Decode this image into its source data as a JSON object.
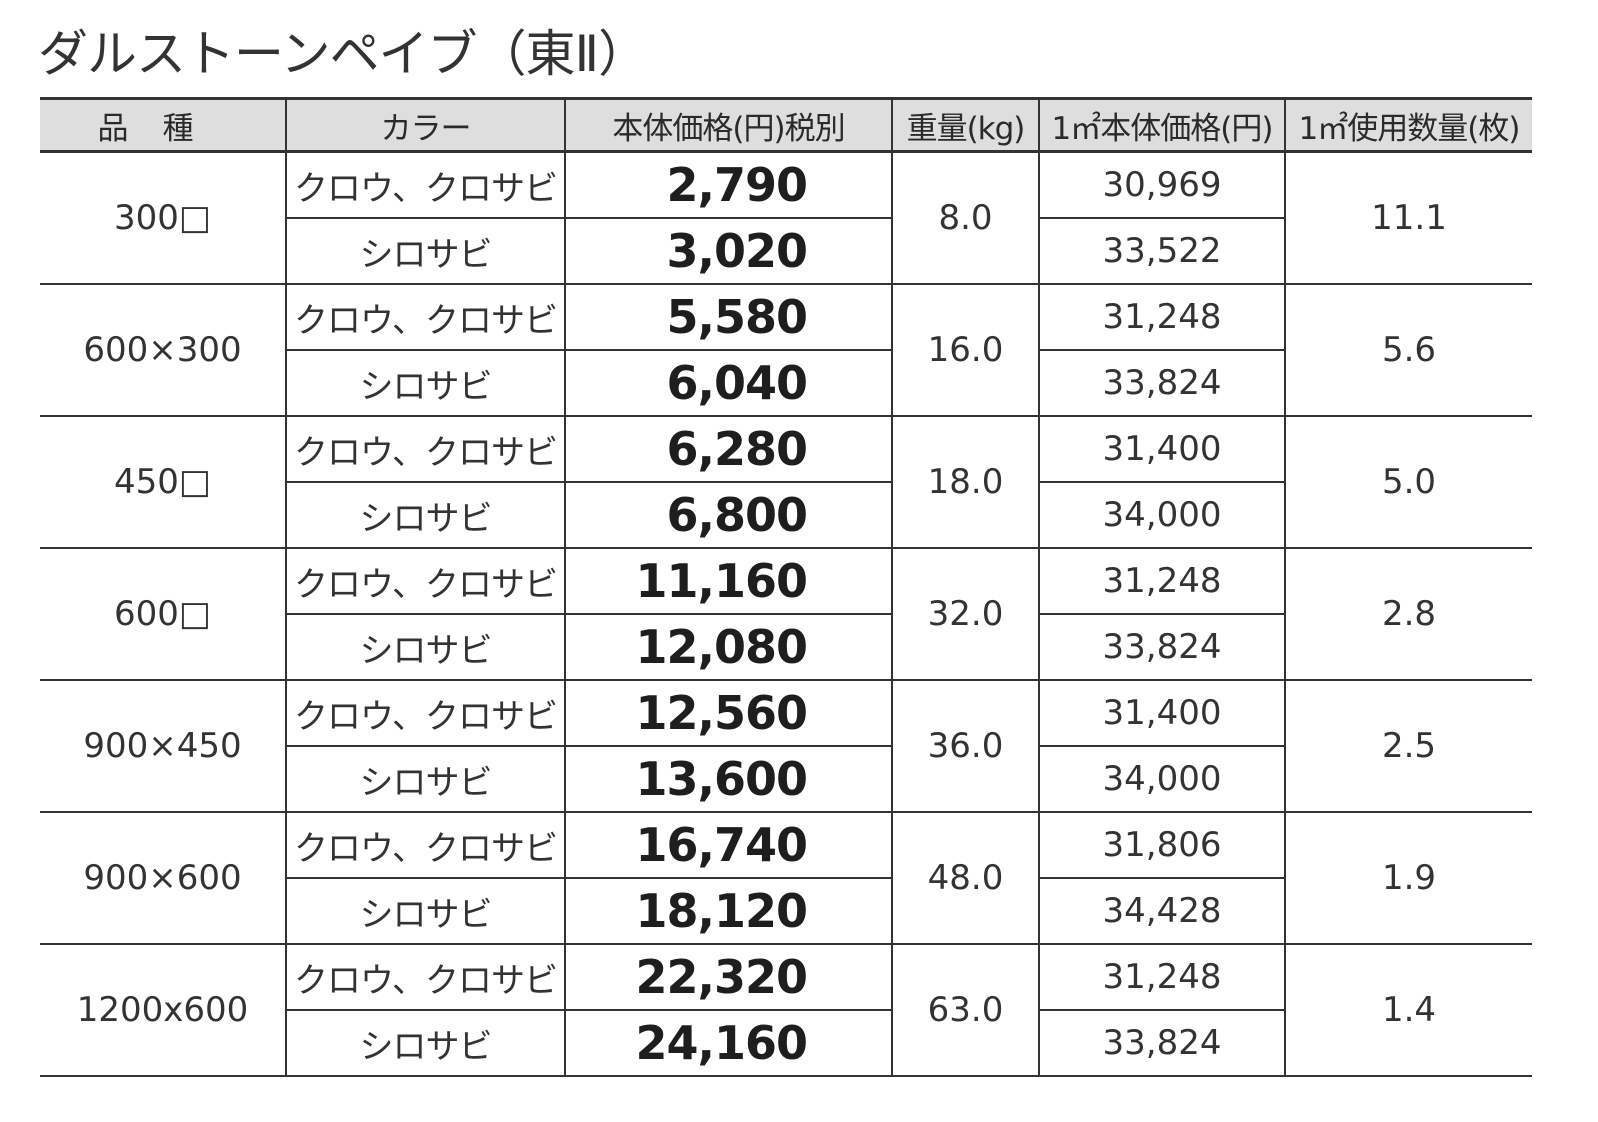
{
  "title": "ダルストーンペイブ（東Ⅱ）",
  "headers": {
    "type": "品種",
    "color": "カラー",
    "price": "本体価格(円)税別",
    "weight": "重量(kg)",
    "price_per_sqm": "1㎡本体価格(円)",
    "qty_per_sqm": "1㎡使用数量(枚)"
  },
  "rows": [
    {
      "type": "300□",
      "weight": "8.0",
      "qty_per_sqm": "11.1",
      "variants": [
        {
          "color": "クロウ、クロサビ",
          "price": "2,790",
          "price_per_sqm": "30,969"
        },
        {
          "color": "シロサビ",
          "price": "3,020",
          "price_per_sqm": "33,522"
        }
      ]
    },
    {
      "type": "600×300",
      "weight": "16.0",
      "qty_per_sqm": "5.6",
      "variants": [
        {
          "color": "クロウ、クロサビ",
          "price": "5,580",
          "price_per_sqm": "31,248"
        },
        {
          "color": "シロサビ",
          "price": "6,040",
          "price_per_sqm": "33,824"
        }
      ]
    },
    {
      "type": "450□",
      "weight": "18.0",
      "qty_per_sqm": "5.0",
      "variants": [
        {
          "color": "クロウ、クロサビ",
          "price": "6,280",
          "price_per_sqm": "31,400"
        },
        {
          "color": "シロサビ",
          "price": "6,800",
          "price_per_sqm": "34,000"
        }
      ]
    },
    {
      "type": "600□",
      "weight": "32.0",
      "qty_per_sqm": "2.8",
      "variants": [
        {
          "color": "クロウ、クロサビ",
          "price": "11,160",
          "price_per_sqm": "31,248"
        },
        {
          "color": "シロサビ",
          "price": "12,080",
          "price_per_sqm": "33,824"
        }
      ]
    },
    {
      "type": "900×450",
      "weight": "36.0",
      "qty_per_sqm": "2.5",
      "variants": [
        {
          "color": "クロウ、クロサビ",
          "price": "12,560",
          "price_per_sqm": "31,400"
        },
        {
          "color": "シロサビ",
          "price": "13,600",
          "price_per_sqm": "34,000"
        }
      ]
    },
    {
      "type": "900×600",
      "weight": "48.0",
      "qty_per_sqm": "1.9",
      "variants": [
        {
          "color": "クロウ、クロサビ",
          "price": "16,740",
          "price_per_sqm": "31,806"
        },
        {
          "color": "シロサビ",
          "price": "18,120",
          "price_per_sqm": "34,428"
        }
      ]
    },
    {
      "type": "1200x600",
      "weight": "63.0",
      "qty_per_sqm": "1.4",
      "variants": [
        {
          "color": "クロウ、クロサビ",
          "price": "22,320",
          "price_per_sqm": "31,248"
        },
        {
          "color": "シロサビ",
          "price": "24,160",
          "price_per_sqm": "33,824"
        }
      ]
    }
  ]
}
